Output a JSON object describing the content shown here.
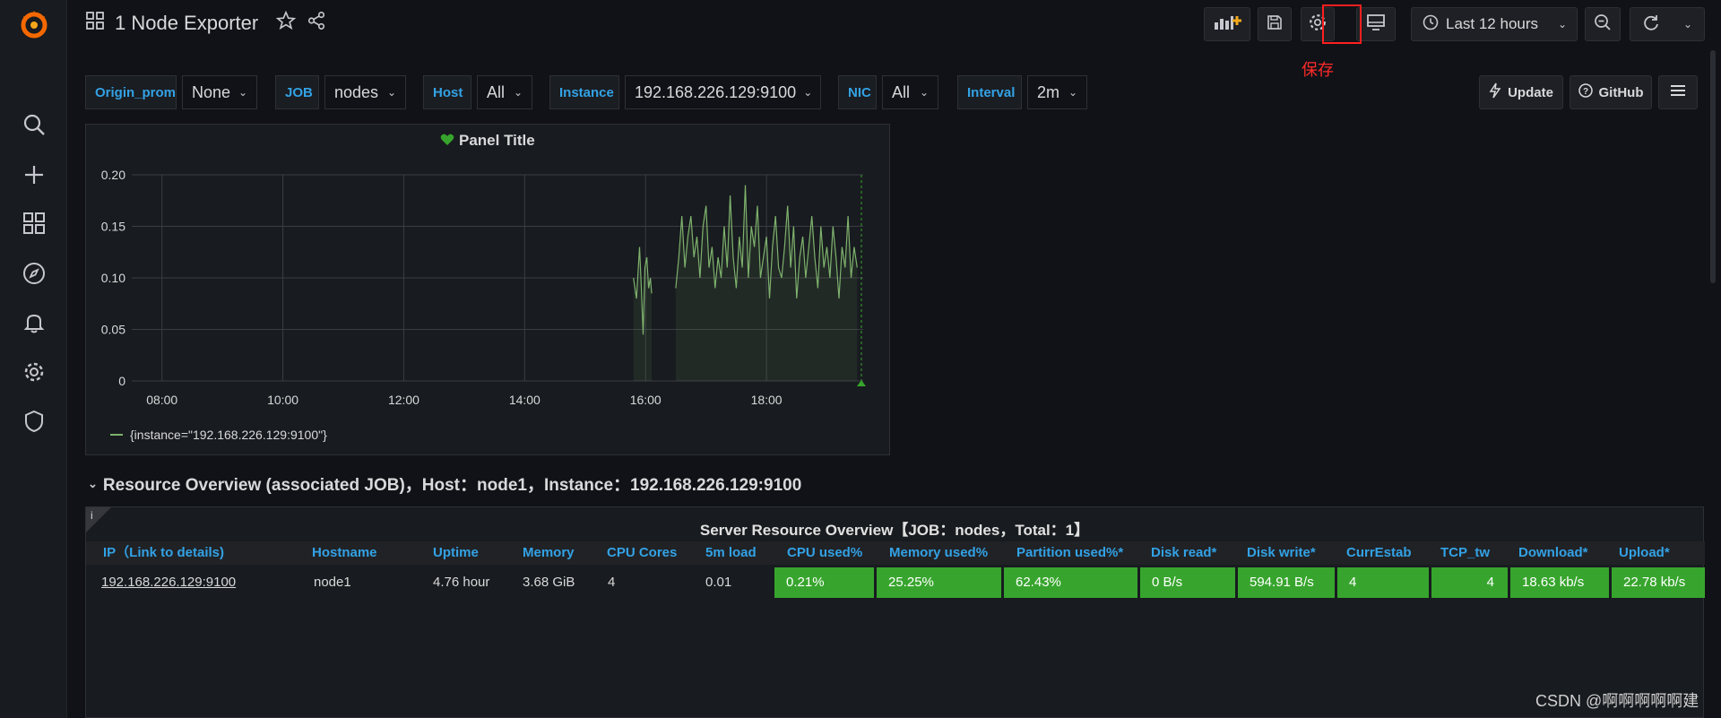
{
  "dashboard": {
    "title": "1 Node Exporter"
  },
  "toolbar": {
    "time_range": "Last 12 hours",
    "save_tooltip": "保存"
  },
  "variables": [
    {
      "label": "Origin_prom",
      "value": "None"
    },
    {
      "label": "JOB",
      "value": "nodes"
    },
    {
      "label": "Host",
      "value": "All"
    },
    {
      "label": "Instance",
      "value": "192.168.226.129:9100"
    },
    {
      "label": "NIC",
      "value": "All"
    },
    {
      "label": "Interval",
      "value": "2m"
    }
  ],
  "links": {
    "update": "Update",
    "github": "GitHub"
  },
  "panel": {
    "title": "Panel Title"
  },
  "chart_data": {
    "type": "line",
    "title": "Panel Title",
    "y_ticks": [
      "0.20",
      "0.15",
      "0.10",
      "0.05",
      "0"
    ],
    "x_ticks": [
      "08:00",
      "10:00",
      "12:00",
      "14:00",
      "16:00",
      "18:00"
    ],
    "ylim": [
      0,
      0.2
    ],
    "xlim_hours": [
      7.5,
      19.6
    ],
    "grid": true,
    "legend": "{instance=\"192.168.226.129:9100\"}",
    "series": [
      {
        "name": "{instance=\"192.168.226.129:9100\"}",
        "points": [
          [
            15.8,
            0.1
          ],
          [
            15.85,
            0.08
          ],
          [
            15.9,
            0.13
          ],
          [
            15.93,
            0.09
          ],
          [
            15.96,
            0.045
          ],
          [
            15.99,
            0.11
          ],
          [
            16.02,
            0.12
          ],
          [
            16.05,
            0.09
          ],
          [
            16.08,
            0.1
          ],
          [
            16.1,
            0.085
          ],
          [
            null,
            null
          ],
          [
            16.5,
            0.09
          ],
          [
            16.55,
            0.12
          ],
          [
            16.6,
            0.16
          ],
          [
            16.65,
            0.11
          ],
          [
            16.7,
            0.14
          ],
          [
            16.75,
            0.16
          ],
          [
            16.8,
            0.12
          ],
          [
            16.85,
            0.14
          ],
          [
            16.9,
            0.1
          ],
          [
            16.95,
            0.15
          ],
          [
            17.0,
            0.17
          ],
          [
            17.05,
            0.11
          ],
          [
            17.1,
            0.13
          ],
          [
            17.15,
            0.09
          ],
          [
            17.2,
            0.12
          ],
          [
            17.25,
            0.1
          ],
          [
            17.3,
            0.15
          ],
          [
            17.35,
            0.11
          ],
          [
            17.4,
            0.18
          ],
          [
            17.45,
            0.12
          ],
          [
            17.5,
            0.09
          ],
          [
            17.55,
            0.14
          ],
          [
            17.6,
            0.11
          ],
          [
            17.65,
            0.19
          ],
          [
            17.7,
            0.1
          ],
          [
            17.75,
            0.15
          ],
          [
            17.8,
            0.13
          ],
          [
            17.85,
            0.17
          ],
          [
            17.9,
            0.1
          ],
          [
            17.95,
            0.12
          ],
          [
            18.0,
            0.14
          ],
          [
            18.05,
            0.08
          ],
          [
            18.1,
            0.13
          ],
          [
            18.15,
            0.16
          ],
          [
            18.2,
            0.11
          ],
          [
            18.25,
            0.1
          ],
          [
            18.3,
            0.13
          ],
          [
            18.35,
            0.17
          ],
          [
            18.4,
            0.11
          ],
          [
            18.45,
            0.15
          ],
          [
            18.5,
            0.08
          ],
          [
            18.55,
            0.12
          ],
          [
            18.6,
            0.14
          ],
          [
            18.65,
            0.1
          ],
          [
            18.7,
            0.13
          ],
          [
            18.75,
            0.16
          ],
          [
            18.8,
            0.12
          ],
          [
            18.85,
            0.09
          ],
          [
            18.9,
            0.15
          ],
          [
            18.95,
            0.11
          ],
          [
            19.0,
            0.13
          ],
          [
            19.05,
            0.1
          ],
          [
            19.1,
            0.15
          ],
          [
            19.15,
            0.12
          ],
          [
            19.2,
            0.08
          ],
          [
            19.25,
            0.13
          ],
          [
            19.3,
            0.11
          ],
          [
            19.35,
            0.16
          ],
          [
            19.4,
            0.1
          ],
          [
            19.45,
            0.13
          ],
          [
            19.5,
            0.11
          ]
        ]
      }
    ],
    "colors": {
      "line": "#7eb26d",
      "grid": "#3a3d43",
      "marker": "#37a52d"
    }
  },
  "row_title": "Resource Overview (associated JOB)，Host：node1，Instance：192.168.226.129:9100",
  "table": {
    "title": "Server Resource Overview【JOB：nodes，Total：1】",
    "columns": [
      "IP（Link to details)",
      "Hostname",
      "Uptime",
      "Memory",
      "CPU Cores",
      "5m load",
      "CPU used%",
      "Memory used%",
      "Partition used%*",
      "Disk read*",
      "Disk write*",
      "CurrEstab",
      "TCP_tw",
      "Download*",
      "Upload*"
    ],
    "rows": [
      [
        "192.168.226.129:9100",
        "node1",
        "4.76 hour",
        "3.68 GiB",
        "4",
        "0.01",
        "0.21%",
        "25.25%",
        "62.43%",
        "0 B/s",
        "594.91 B/s",
        "4",
        "4",
        "18.63 kb/s",
        "22.78 kb/s"
      ]
    ]
  },
  "watermark": "CSDN @啊啊啊啊啊建"
}
